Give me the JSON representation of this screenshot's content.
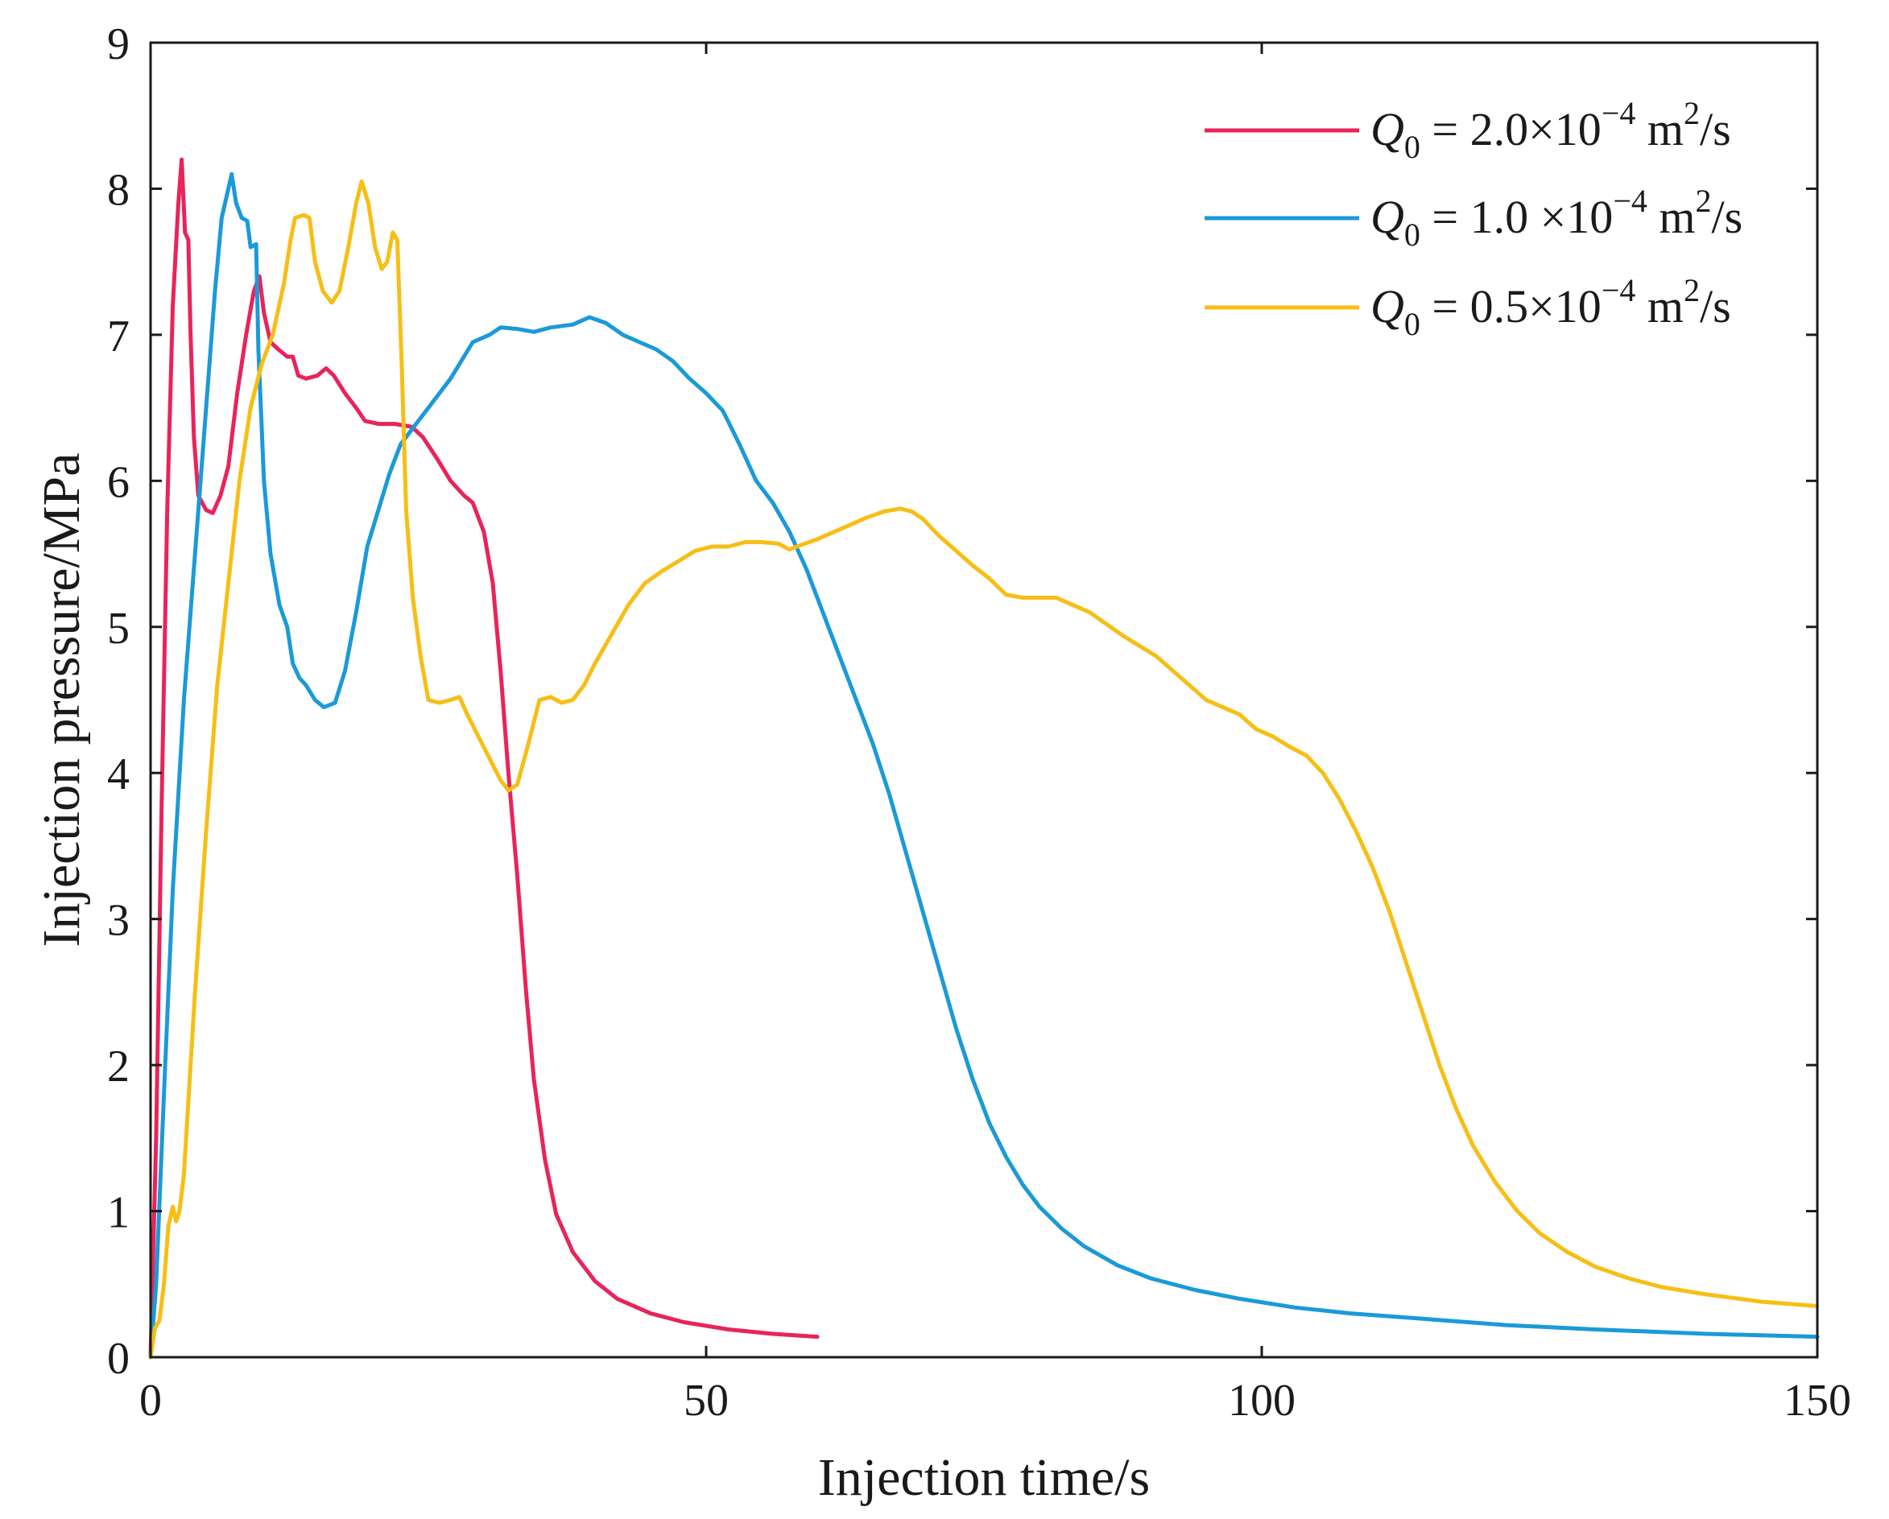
{
  "chart_data": {
    "type": "line",
    "title": "",
    "xlabel": "Injection time/s",
    "ylabel": "Injection pressure/MPa",
    "xlim": [
      0,
      150
    ],
    "ylim": [
      0,
      9
    ],
    "xticks": [
      "0",
      "50",
      "100",
      "150"
    ],
    "yticks": [
      "0",
      "1",
      "2",
      "3",
      "4",
      "5",
      "6",
      "7",
      "8",
      "9"
    ],
    "grid": false,
    "legend_position": "top-right",
    "series": [
      {
        "name": "Q0 = 2.0×10−4 m2/s",
        "legend": {
          "q": "Q",
          "sub": "0",
          "eq": " = 2.0×10",
          "exp": "−4",
          "unit": " m",
          "unit_exp": "2",
          "tail": "/s"
        },
        "color": "#e8245a",
        "points": [
          [
            0,
            0
          ],
          [
            0.5,
            1.5
          ],
          [
            1.0,
            3.8
          ],
          [
            1.5,
            5.8
          ],
          [
            2.0,
            7.2
          ],
          [
            2.5,
            7.9
          ],
          [
            2.8,
            8.2
          ],
          [
            3.1,
            7.7
          ],
          [
            3.4,
            7.65
          ],
          [
            3.6,
            7.0
          ],
          [
            3.9,
            6.3
          ],
          [
            4.3,
            5.9
          ],
          [
            5.0,
            5.8
          ],
          [
            5.6,
            5.78
          ],
          [
            6.3,
            5.9
          ],
          [
            7.0,
            6.1
          ],
          [
            7.8,
            6.6
          ],
          [
            8.6,
            7.0
          ],
          [
            9.3,
            7.3
          ],
          [
            9.8,
            7.4
          ],
          [
            10.2,
            7.15
          ],
          [
            10.8,
            6.95
          ],
          [
            11.5,
            6.9
          ],
          [
            12.3,
            6.85
          ],
          [
            12.8,
            6.85
          ],
          [
            13.3,
            6.72
          ],
          [
            14.0,
            6.7
          ],
          [
            15.0,
            6.72
          ],
          [
            15.8,
            6.77
          ],
          [
            16.5,
            6.72
          ],
          [
            17.5,
            6.6
          ],
          [
            18.5,
            6.5
          ],
          [
            19.3,
            6.41
          ],
          [
            20.5,
            6.39
          ],
          [
            22.0,
            6.39
          ],
          [
            23.5,
            6.37
          ],
          [
            24.5,
            6.3
          ],
          [
            25.8,
            6.15
          ],
          [
            27.0,
            6.0
          ],
          [
            28.2,
            5.9
          ],
          [
            29.0,
            5.85
          ],
          [
            30.0,
            5.65
          ],
          [
            30.8,
            5.3
          ],
          [
            31.5,
            4.7
          ],
          [
            32.2,
            4.0
          ],
          [
            33.0,
            3.3
          ],
          [
            33.8,
            2.5
          ],
          [
            34.5,
            1.9
          ],
          [
            35.5,
            1.35
          ],
          [
            36.5,
            0.98
          ],
          [
            38.0,
            0.72
          ],
          [
            40.0,
            0.52
          ],
          [
            42.0,
            0.4
          ],
          [
            45.0,
            0.3
          ],
          [
            48.0,
            0.24
          ],
          [
            52.0,
            0.19
          ],
          [
            56.0,
            0.16
          ],
          [
            60.0,
            0.14
          ]
        ]
      },
      {
        "name": "Q0 = 1.0 ×10−4 m2/s",
        "legend": {
          "q": "Q",
          "sub": "0",
          "eq": " = 1.0 ×10",
          "exp": "−4",
          "unit": " m",
          "unit_exp": "2",
          "tail": "/s"
        },
        "color": "#1b9ad8",
        "points": [
          [
            0,
            0
          ],
          [
            0.5,
            0.5
          ],
          [
            1.2,
            1.8
          ],
          [
            2.0,
            3.2
          ],
          [
            3.0,
            4.5
          ],
          [
            4.0,
            5.5
          ],
          [
            5.0,
            6.5
          ],
          [
            5.8,
            7.3
          ],
          [
            6.4,
            7.8
          ],
          [
            7.0,
            8.0
          ],
          [
            7.3,
            8.1
          ],
          [
            7.7,
            7.9
          ],
          [
            8.2,
            7.8
          ],
          [
            8.7,
            7.78
          ],
          [
            9.0,
            7.6
          ],
          [
            9.5,
            7.62
          ],
          [
            9.7,
            6.9
          ],
          [
            10.2,
            6.0
          ],
          [
            10.8,
            5.5
          ],
          [
            11.6,
            5.15
          ],
          [
            12.3,
            5.0
          ],
          [
            12.8,
            4.75
          ],
          [
            13.4,
            4.65
          ],
          [
            14.0,
            4.6
          ],
          [
            14.8,
            4.5
          ],
          [
            15.6,
            4.45
          ],
          [
            16.6,
            4.48
          ],
          [
            17.5,
            4.7
          ],
          [
            18.5,
            5.1
          ],
          [
            19.5,
            5.55
          ],
          [
            20.5,
            5.8
          ],
          [
            21.5,
            6.05
          ],
          [
            22.5,
            6.25
          ],
          [
            23.5,
            6.35
          ],
          [
            25.0,
            6.5
          ],
          [
            27.0,
            6.7
          ],
          [
            29.0,
            6.95
          ],
          [
            30.5,
            7.0
          ],
          [
            31.5,
            7.05
          ],
          [
            33.0,
            7.04
          ],
          [
            34.5,
            7.02
          ],
          [
            36.0,
            7.05
          ],
          [
            38.0,
            7.07
          ],
          [
            39.5,
            7.12
          ],
          [
            41.0,
            7.08
          ],
          [
            42.5,
            7.0
          ],
          [
            44.0,
            6.95
          ],
          [
            45.5,
            6.9
          ],
          [
            47.0,
            6.82
          ],
          [
            48.5,
            6.7
          ],
          [
            50.0,
            6.6
          ],
          [
            51.5,
            6.48
          ],
          [
            53.0,
            6.25
          ],
          [
            54.5,
            6.0
          ],
          [
            56.0,
            5.85
          ],
          [
            57.5,
            5.65
          ],
          [
            59.0,
            5.4
          ],
          [
            60.5,
            5.1
          ],
          [
            62.0,
            4.8
          ],
          [
            63.5,
            4.5
          ],
          [
            65.0,
            4.2
          ],
          [
            66.5,
            3.85
          ],
          [
            68.0,
            3.45
          ],
          [
            69.5,
            3.05
          ],
          [
            71.0,
            2.65
          ],
          [
            72.5,
            2.25
          ],
          [
            74.0,
            1.9
          ],
          [
            75.5,
            1.6
          ],
          [
            77.0,
            1.37
          ],
          [
            78.5,
            1.18
          ],
          [
            80.0,
            1.03
          ],
          [
            82.0,
            0.88
          ],
          [
            84.0,
            0.76
          ],
          [
            87.0,
            0.63
          ],
          [
            90.0,
            0.54
          ],
          [
            94.0,
            0.46
          ],
          [
            98.0,
            0.4
          ],
          [
            103.0,
            0.34
          ],
          [
            108.0,
            0.3
          ],
          [
            115.0,
            0.26
          ],
          [
            122.0,
            0.22
          ],
          [
            130.0,
            0.19
          ],
          [
            140.0,
            0.16
          ],
          [
            150.0,
            0.14
          ]
        ]
      },
      {
        "name": "Q0 = 0.5×10−4 m2/s",
        "legend": {
          "q": "Q",
          "sub": "0",
          "eq": " = 0.5×10",
          "exp": "−4",
          "unit": " m",
          "unit_exp": "2",
          "tail": "/s"
        },
        "color": "#f7be16",
        "points": [
          [
            0,
            0
          ],
          [
            0.4,
            0.2
          ],
          [
            0.8,
            0.25
          ],
          [
            1.2,
            0.5
          ],
          [
            1.6,
            0.9
          ],
          [
            2.0,
            1.03
          ],
          [
            2.3,
            0.93
          ],
          [
            2.6,
            1.0
          ],
          [
            3.0,
            1.25
          ],
          [
            4.0,
            2.5
          ],
          [
            5.0,
            3.6
          ],
          [
            6.0,
            4.6
          ],
          [
            7.0,
            5.3
          ],
          [
            8.0,
            6.0
          ],
          [
            9.0,
            6.5
          ],
          [
            10.0,
            6.8
          ],
          [
            11.0,
            7.0
          ],
          [
            12.0,
            7.35
          ],
          [
            12.6,
            7.65
          ],
          [
            13.0,
            7.8
          ],
          [
            13.8,
            7.82
          ],
          [
            14.3,
            7.8
          ],
          [
            14.8,
            7.5
          ],
          [
            15.5,
            7.3
          ],
          [
            16.3,
            7.22
          ],
          [
            17.0,
            7.3
          ],
          [
            17.8,
            7.6
          ],
          [
            18.5,
            7.9
          ],
          [
            19.0,
            8.05
          ],
          [
            19.6,
            7.9
          ],
          [
            20.2,
            7.6
          ],
          [
            20.8,
            7.45
          ],
          [
            21.3,
            7.5
          ],
          [
            21.8,
            7.7
          ],
          [
            22.2,
            7.65
          ],
          [
            22.6,
            6.8
          ],
          [
            23.0,
            5.8
          ],
          [
            23.6,
            5.2
          ],
          [
            24.3,
            4.8
          ],
          [
            25.0,
            4.5
          ],
          [
            26.0,
            4.48
          ],
          [
            27.0,
            4.5
          ],
          [
            27.8,
            4.52
          ],
          [
            28.5,
            4.4
          ],
          [
            29.5,
            4.25
          ],
          [
            30.5,
            4.1
          ],
          [
            31.5,
            3.95
          ],
          [
            32.2,
            3.88
          ],
          [
            33.0,
            3.92
          ],
          [
            34.0,
            4.2
          ],
          [
            35.0,
            4.5
          ],
          [
            36.0,
            4.52
          ],
          [
            37.0,
            4.48
          ],
          [
            38.0,
            4.5
          ],
          [
            39.0,
            4.6
          ],
          [
            40.0,
            4.75
          ],
          [
            41.5,
            4.95
          ],
          [
            43.0,
            5.15
          ],
          [
            44.5,
            5.3
          ],
          [
            46.0,
            5.38
          ],
          [
            47.5,
            5.45
          ],
          [
            49.0,
            5.52
          ],
          [
            50.5,
            5.55
          ],
          [
            52.0,
            5.55
          ],
          [
            53.5,
            5.58
          ],
          [
            55.0,
            5.58
          ],
          [
            56.5,
            5.57
          ],
          [
            57.5,
            5.53
          ],
          [
            58.5,
            5.56
          ],
          [
            60.0,
            5.6
          ],
          [
            61.5,
            5.65
          ],
          [
            63.0,
            5.7
          ],
          [
            64.5,
            5.75
          ],
          [
            66.0,
            5.79
          ],
          [
            67.5,
            5.81
          ],
          [
            68.5,
            5.79
          ],
          [
            69.5,
            5.74
          ],
          [
            71.0,
            5.62
          ],
          [
            72.5,
            5.52
          ],
          [
            74.0,
            5.42
          ],
          [
            75.5,
            5.33
          ],
          [
            77.0,
            5.22
          ],
          [
            78.5,
            5.2
          ],
          [
            80.0,
            5.2
          ],
          [
            81.5,
            5.2
          ],
          [
            83.0,
            5.15
          ],
          [
            84.5,
            5.1
          ],
          [
            86.0,
            5.02
          ],
          [
            87.5,
            4.94
          ],
          [
            89.0,
            4.87
          ],
          [
            90.5,
            4.8
          ],
          [
            92.0,
            4.7
          ],
          [
            93.5,
            4.6
          ],
          [
            95.0,
            4.5
          ],
          [
            96.5,
            4.45
          ],
          [
            98.0,
            4.4
          ],
          [
            99.5,
            4.3
          ],
          [
            101.0,
            4.25
          ],
          [
            102.5,
            4.18
          ],
          [
            104.0,
            4.12
          ],
          [
            105.5,
            4.0
          ],
          [
            107.0,
            3.82
          ],
          [
            108.5,
            3.6
          ],
          [
            110.0,
            3.35
          ],
          [
            111.5,
            3.05
          ],
          [
            113.0,
            2.7
          ],
          [
            114.5,
            2.35
          ],
          [
            116.0,
            2.0
          ],
          [
            117.5,
            1.7
          ],
          [
            119.0,
            1.45
          ],
          [
            121.0,
            1.2
          ],
          [
            123.0,
            1.0
          ],
          [
            125.0,
            0.85
          ],
          [
            127.5,
            0.72
          ],
          [
            130.0,
            0.62
          ],
          [
            133.0,
            0.54
          ],
          [
            136.0,
            0.48
          ],
          [
            140.0,
            0.43
          ],
          [
            145.0,
            0.38
          ],
          [
            150.0,
            0.35
          ]
        ]
      }
    ]
  }
}
